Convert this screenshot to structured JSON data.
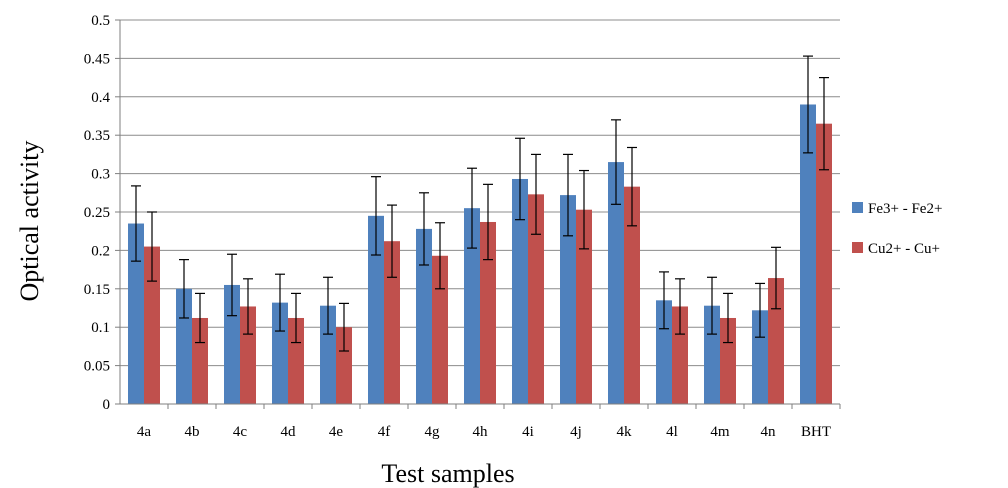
{
  "chart_data": {
    "type": "bar",
    "title": "",
    "xlabel": "Test samples",
    "ylabel": "Optical activity",
    "ylim": [
      0,
      0.5
    ],
    "yticks": [
      "0",
      "0.05",
      "0.1",
      "0.15",
      "0.2",
      "0.25",
      "0.3",
      "0.35",
      "0.4",
      "0.45",
      "0.5"
    ],
    "grid": "horizontal",
    "legend_position": "right",
    "categories": [
      "4a",
      "4b",
      "4c",
      "4d",
      "4e",
      "4f",
      "4g",
      "4h",
      "4i",
      "4j",
      "4k",
      "4l",
      "4m",
      "4n",
      "BHT"
    ],
    "series": [
      {
        "name": "Fe3+ - Fe2+",
        "color": "#4F81BD",
        "values": [
          0.235,
          0.15,
          0.155,
          0.132,
          0.128,
          0.245,
          0.228,
          0.255,
          0.293,
          0.272,
          0.315,
          0.135,
          0.128,
          0.122,
          0.39
        ],
        "errors": [
          0.049,
          0.038,
          0.04,
          0.037,
          0.037,
          0.051,
          0.047,
          0.052,
          0.053,
          0.053,
          0.055,
          0.037,
          0.037,
          0.035,
          0.063
        ]
      },
      {
        "name": "Cu2+ - Cu+",
        "color": "#C0504D",
        "values": [
          0.205,
          0.112,
          0.127,
          0.112,
          0.1,
          0.212,
          0.193,
          0.237,
          0.273,
          0.253,
          0.283,
          0.127,
          0.112,
          0.164,
          0.365
        ],
        "errors": [
          0.045,
          0.032,
          0.036,
          0.032,
          0.031,
          0.047,
          0.043,
          0.049,
          0.052,
          0.051,
          0.051,
          0.036,
          0.032,
          0.04,
          0.06
        ]
      }
    ]
  }
}
